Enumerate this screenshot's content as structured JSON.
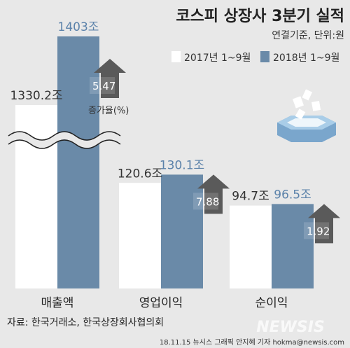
{
  "header": {
    "title": "코스피 상장사 3분기 실적",
    "subtitle": "연결기준, 단위:원"
  },
  "legend": [
    {
      "label": "2017년 1~9월",
      "color": "#ffffff"
    },
    {
      "label": "2018년 1~9월",
      "color": "#6a8aa8"
    }
  ],
  "growth_label": "증가율(%)",
  "source": "자료: 한국거래소, 한국상장회사협의회",
  "credit": "18.11.15 뉴시스 그래픽 안지혜 기자 hokma@newsis.com",
  "watermark": "NEWSIS",
  "colors": {
    "bar2017": "#ffffff",
    "bar2018": "#6a8aa8",
    "label2018": "#5b82aa",
    "arrow": "#5a5a5a",
    "background": "#e8e8e8"
  },
  "chart_data": {
    "type": "bar",
    "categories": [
      "매출액",
      "영업이익",
      "순이익"
    ],
    "series": [
      {
        "name": "2017년 1~9월",
        "values": [
          1330.2,
          120.6,
          94.7
        ],
        "labels": [
          "1330.2조",
          "120.6조",
          "94.7조"
        ]
      },
      {
        "name": "2018년 1~9월",
        "values": [
          1403,
          130.1,
          96.5
        ],
        "labels": [
          "1403조",
          "130.1조",
          "96.5조"
        ]
      }
    ],
    "growth_rates": [
      5.47,
      7.88,
      1.92
    ],
    "growth_labels": [
      "5.47",
      "7.88",
      "1.92"
    ],
    "axis_break": "매출액",
    "title": "코스피 상장사 3분기 실적",
    "xlabel": "",
    "ylabel": ""
  }
}
